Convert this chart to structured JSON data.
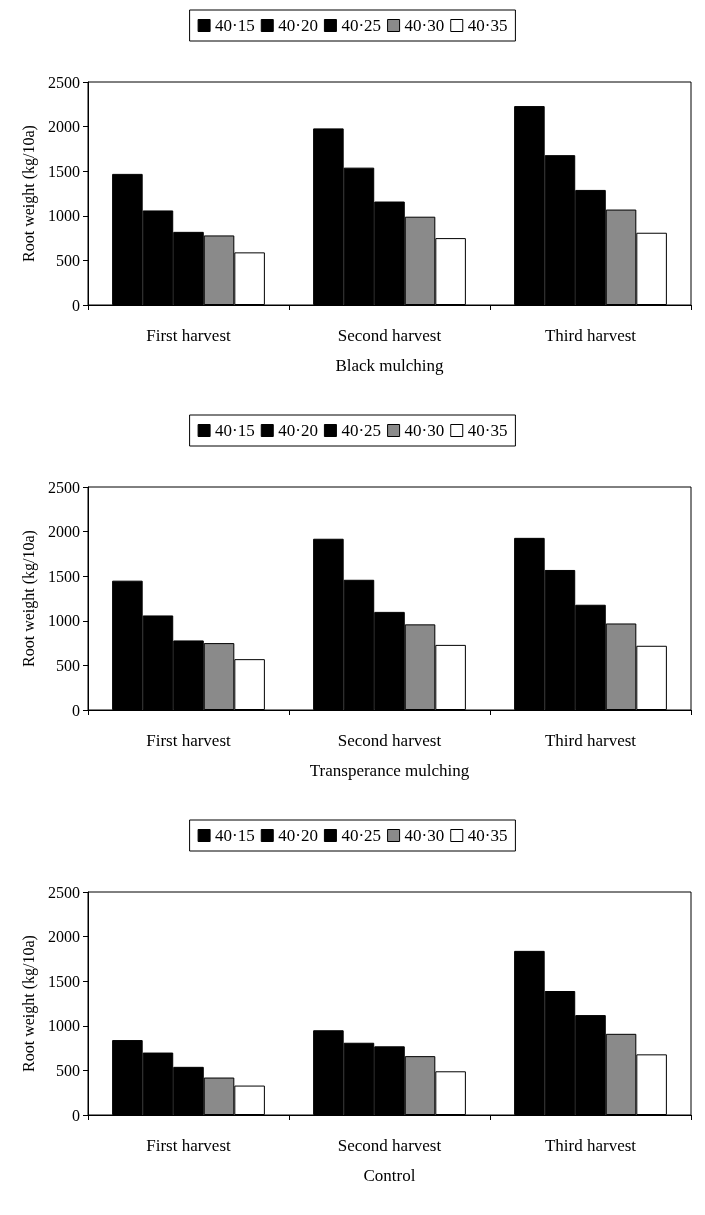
{
  "chart_data": [
    {
      "type": "bar",
      "xlabel": "Black mulching",
      "ylabel": "Root weight (kg/10a)",
      "categories": [
        "First harvest",
        "Second harvest",
        "Third harvest"
      ],
      "series": [
        {
          "name": "40·15",
          "color": "#000000",
          "values": [
            1470,
            1980,
            2230
          ]
        },
        {
          "name": "40·20",
          "color": "#000000",
          "values": [
            1060,
            1540,
            1680
          ]
        },
        {
          "name": "40·25",
          "color": "#000000",
          "values": [
            820,
            1160,
            1290
          ]
        },
        {
          "name": "40·30",
          "color": "#8a8a8a",
          "values": [
            780,
            990,
            1070
          ]
        },
        {
          "name": "40·35",
          "color": "#ffffff",
          "values": [
            590,
            750,
            810
          ]
        }
      ],
      "ylim": [
        0,
        2500
      ],
      "yticks": [
        0,
        500,
        1000,
        1500,
        2000,
        2500
      ],
      "grid": false,
      "legend": "top"
    },
    {
      "type": "bar",
      "xlabel": "Transperance mulching",
      "ylabel": "Root weight (kg/10a)",
      "categories": [
        "First harvest",
        "Second harvest",
        "Third harvest"
      ],
      "series": [
        {
          "name": "40·15",
          "color": "#000000",
          "values": [
            1450,
            1920,
            1930
          ]
        },
        {
          "name": "40·20",
          "color": "#000000",
          "values": [
            1060,
            1460,
            1570
          ]
        },
        {
          "name": "40·25",
          "color": "#000000",
          "values": [
            780,
            1100,
            1180
          ]
        },
        {
          "name": "40·30",
          "color": "#8a8a8a",
          "values": [
            750,
            960,
            970
          ]
        },
        {
          "name": "40·35",
          "color": "#ffffff",
          "values": [
            570,
            730,
            720
          ]
        }
      ],
      "ylim": [
        0,
        2500
      ],
      "yticks": [
        0,
        500,
        1000,
        1500,
        2000,
        2500
      ],
      "grid": false,
      "legend": "top"
    },
    {
      "type": "bar",
      "xlabel": "Control",
      "ylabel": "Root weight (kg/10a)",
      "categories": [
        "First harvest",
        "Second harvest",
        "Third harvest"
      ],
      "series": [
        {
          "name": "40·15",
          "color": "#000000",
          "values": [
            840,
            950,
            1840
          ]
        },
        {
          "name": "40·20",
          "color": "#000000",
          "values": [
            700,
            810,
            1390
          ]
        },
        {
          "name": "40·25",
          "color": "#000000",
          "values": [
            540,
            770,
            1120
          ]
        },
        {
          "name": "40·30",
          "color": "#8a8a8a",
          "values": [
            420,
            660,
            910
          ]
        },
        {
          "name": "40·35",
          "color": "#ffffff",
          "values": [
            330,
            490,
            680
          ]
        }
      ],
      "ylim": [
        0,
        2500
      ],
      "yticks": [
        0,
        500,
        1000,
        1500,
        2000,
        2500
      ],
      "grid": false,
      "legend": "top"
    }
  ]
}
